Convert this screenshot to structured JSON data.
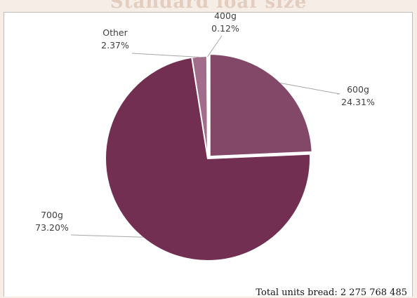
{
  "header": {
    "title": "Standard loaf size"
  },
  "chart_data": {
    "type": "pie",
    "title": "",
    "slices": [
      {
        "label": "600g",
        "value": 24.31,
        "value_label": "24.31%",
        "color": "#834867"
      },
      {
        "label": "700g",
        "value": 73.2,
        "value_label": "73.20%",
        "color": "#722f51"
      },
      {
        "label": "Other",
        "value": 2.37,
        "value_label": "2.37%",
        "color": "#a26d8a"
      },
      {
        "label": "400g",
        "value": 0.12,
        "value_label": "0.12%",
        "color": "#c49db1"
      }
    ],
    "start_angle_deg": 0,
    "direction": "clockwise",
    "first_slice_exploded": true,
    "data_labels": "outside with leader lines",
    "legend": "none"
  },
  "footer": {
    "total_note": "Total units bread: 2 275 768 485"
  }
}
